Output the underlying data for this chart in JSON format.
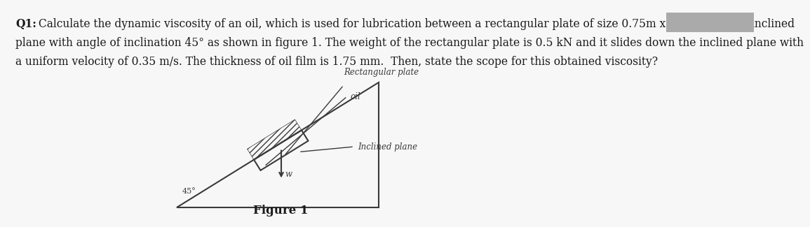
{
  "background_color": "#f7f7f7",
  "title_bold": "Q1:",
  "line1_rest": " Calculate the dynamic viscosity of an oil, which is used for lubrication between a rectangular plate of size 0.75m x 0.55 m and an inclined",
  "line2": "plane with angle of inclination 45° as shown in figure 1. The weight of the rectangular plate is 0.5 kN and it slides down the inclined plane with",
  "line3": "a uniform velocity of 0.35 m/s. The thickness of oil film is 1.75 mm.  Then, state the scope for this obtained viscosity?",
  "figure_caption": "Figure 1",
  "label_rect_plate": "Rectangular plate",
  "label_oil": "oil",
  "label_inclined": "Inclined plane",
  "label_angle": "45°",
  "label_w": "w",
  "text_color": "#1a1a1a",
  "draw_color": "#3a3a3a",
  "gray_box_color": "#aaaaaa",
  "font_size_main": 11.2,
  "font_size_fig": 12,
  "font_size_draw": 8.5
}
